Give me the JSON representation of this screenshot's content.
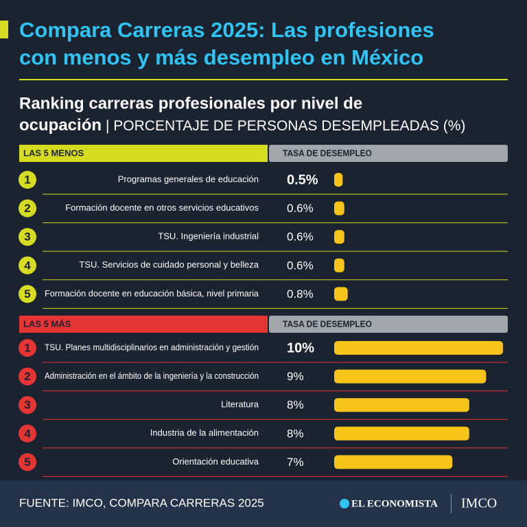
{
  "header": {
    "title": [
      "Compara Carreras 2025: Las profesiones",
      "con menos y más desempleo en México"
    ],
    "subtitle": [
      "Ranking carreras profesionales por nivel de",
      "ocupación"
    ],
    "subtitle_unit": "| PORCENTAJE DE PERSONAS DESEMPLEADAS (%)"
  },
  "chart_data": [
    {
      "type": "bar",
      "orientation": "horizontal",
      "label": "LAS 5 MENOS",
      "value_header": "TASA DE DESEMPLEO",
      "ranks": [
        1,
        2,
        3,
        4,
        5
      ],
      "categories": [
        "Programas generales de educación",
        "Formación docente en otros servicios educativos",
        "TSU. Ingeniería industrial",
        "TSU. Servicios de cuidado personal y belleza",
        "Formación docente en educación básica, nivel primaria"
      ],
      "values": [
        0.5,
        0.6,
        0.6,
        0.6,
        0.8
      ],
      "value_labels": [
        "0.5%",
        "0.6%",
        "0.6%",
        "0.6%",
        "0.8%"
      ],
      "color": "#f7c51a",
      "header_color": "#d6dc1f",
      "rank_color": "#d6dc1f",
      "xlim": [
        0,
        10
      ]
    },
    {
      "type": "bar",
      "orientation": "horizontal",
      "label": "LAS 5 MÁS",
      "value_header": "TASA DE DESEMPLEO",
      "ranks": [
        1,
        2,
        3,
        4,
        5
      ],
      "categories": [
        "TSU. Planes multidisciplinarios en administración y gestión",
        "Administración en el ámbito de la ingeniería y la construcción",
        "Literatura",
        "Industria de la alimentación",
        "Orientación educativa"
      ],
      "values": [
        10,
        9,
        8,
        8,
        7
      ],
      "value_labels": [
        "10%",
        "9%",
        "8%",
        "8%",
        "7%"
      ],
      "color": "#f7c51a",
      "header_color": "#e53434",
      "rank_color": "#e53434",
      "xlim": [
        0,
        10
      ]
    }
  ],
  "footer": {
    "source": "FUENTE: IMCO, COMPARA CARRERAS 2025",
    "logos": [
      "EL ECONOMISTA",
      "IMCO"
    ]
  }
}
